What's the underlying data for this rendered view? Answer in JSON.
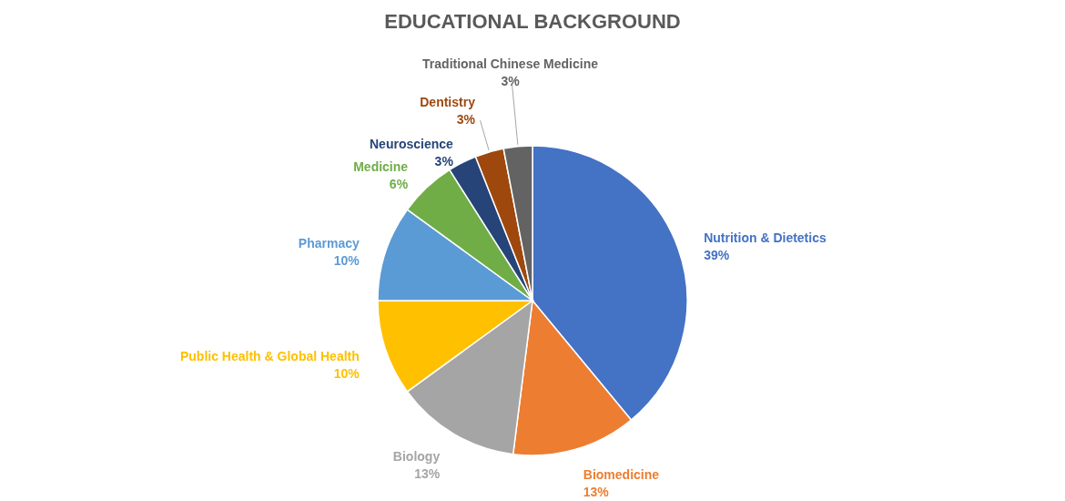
{
  "chart_data": {
    "type": "pie",
    "title": "EDUCATIONAL BACKGROUND",
    "categories": [
      "Nutrition & Dietetics",
      "Biomedicine",
      "Biology",
      "Public Health & Global Health",
      "Pharmacy",
      "Medicine",
      "Neuroscience",
      "Dentistry",
      "Traditional Chinese Medicine"
    ],
    "values": [
      39,
      13,
      13,
      10,
      10,
      6,
      3,
      3,
      3
    ],
    "value_labels": [
      "39%",
      "13%",
      "13%",
      "10%",
      "10%",
      "6%",
      "3%",
      "3%",
      "3%"
    ],
    "colors": [
      "#4472c4",
      "#ed7d31",
      "#a5a5a5",
      "#ffc000",
      "#5b9bd5",
      "#70ad47",
      "#264478",
      "#9e480e",
      "#636363"
    ],
    "legend": false
  }
}
